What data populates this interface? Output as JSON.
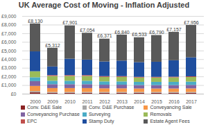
{
  "chart_data": {
    "type": "bar",
    "title": "UK Average Cost of Moving - Inflation Adjusted",
    "stacked": true,
    "grid": true,
    "legend": "bottom",
    "categories": [
      "2000",
      "2009",
      "2010",
      "2011",
      "2012",
      "2013",
      "2014",
      "2015",
      "2016",
      "2017"
    ],
    "ylim": [
      0,
      9000
    ],
    "yticks": [
      {
        "value": 0,
        "label": "£0"
      },
      {
        "value": 1000,
        "label": "£1,000"
      },
      {
        "value": 2000,
        "label": "£2,000"
      },
      {
        "value": 3000,
        "label": "£3,000"
      },
      {
        "value": 4000,
        "label": "£4,000"
      },
      {
        "value": 5000,
        "label": "£5,000"
      },
      {
        "value": 6000,
        "label": "£6,000"
      },
      {
        "value": 7000,
        "label": "£7,000"
      },
      {
        "value": 8000,
        "label": "£8,000"
      },
      {
        "value": 9000,
        "label": "£9,000"
      }
    ],
    "series": [
      {
        "name": "Conv. D&E Sale",
        "color": "#8b2323",
        "values": [
          150,
          100,
          100,
          100,
          100,
          100,
          100,
          100,
          100,
          100
        ]
      },
      {
        "name": "Conv. D&E Purchase",
        "color": "#a5a5a5",
        "values": [
          150,
          100,
          100,
          100,
          100,
          100,
          100,
          100,
          100,
          100
        ]
      },
      {
        "name": "Conveyancing Sale",
        "color": "#f79646",
        "values": [
          600,
          450,
          450,
          450,
          420,
          420,
          400,
          400,
          400,
          410
        ]
      },
      {
        "name": "Conveyancing Purchase",
        "color": "#8064a2",
        "values": [
          550,
          450,
          450,
          450,
          420,
          420,
          400,
          400,
          400,
          410
        ]
      },
      {
        "name": "Surveying",
        "color": "#4bacc6",
        "values": [
          450,
          400,
          400,
          400,
          380,
          380,
          370,
          370,
          370,
          380
        ]
      },
      {
        "name": "Removals",
        "color": "#9bbb59",
        "values": [
          700,
          550,
          550,
          550,
          520,
          520,
          500,
          500,
          520,
          530
        ]
      },
      {
        "name": "EPC",
        "color": "#c0504d",
        "values": [
          0,
          100,
          100,
          100,
          90,
          90,
          80,
          80,
          80,
          80
        ]
      },
      {
        "name": "Stamp Duty",
        "color": "#1f4e9e",
        "values": [
          2300,
          1000,
          1900,
          1800,
          1700,
          1800,
          1700,
          1750,
          1900,
          2200
        ]
      },
      {
        "name": "Estate Agent Fees",
        "color": "#595959",
        "values": [
          3230,
          2162,
          3851,
          3104,
          2641,
          3010,
          2883,
          3090,
          3287,
          3746
        ]
      }
    ],
    "totals": {
      "values": [
        8130,
        5312,
        7901,
        7054,
        6371,
        6840,
        6533,
        6790,
        7157,
        7956
      ],
      "value_labels": [
        "£8,130",
        "£5,312",
        "£7,901",
        "£7,054",
        "£6,371",
        "£6,840",
        "£6,533",
        "£6,790",
        "£7,157",
        "£7,956"
      ]
    }
  }
}
